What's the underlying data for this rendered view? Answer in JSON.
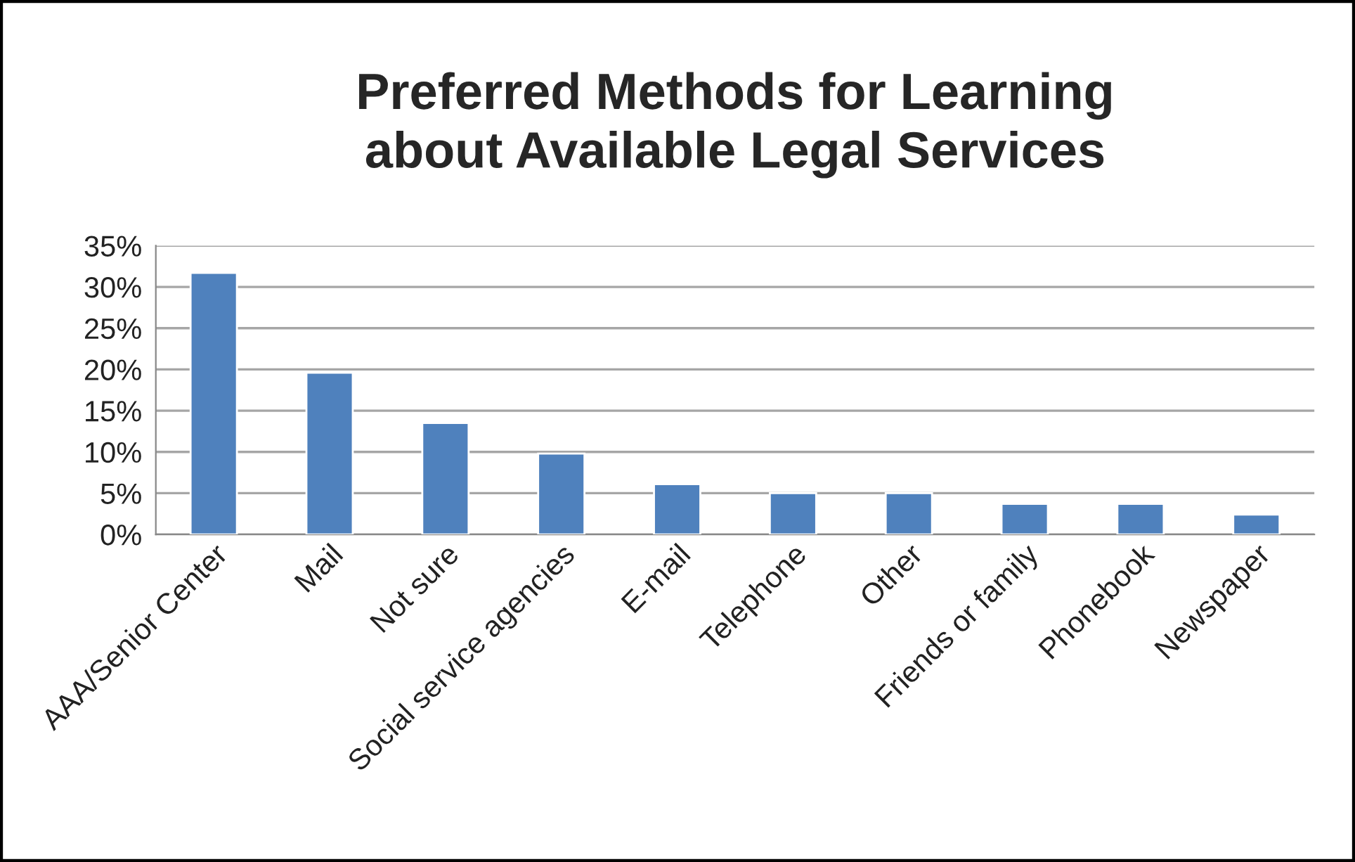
{
  "chart_data": {
    "type": "bar",
    "title": "Preferred Methods for Learning\nabout Available Legal Services",
    "categories": [
      "AAA/Senior Center",
      "Mail",
      "Not sure",
      "Social service agencies",
      "E-mail",
      "Telephone",
      "Other",
      "Friends or family",
      "Phonebook",
      "Newspaper"
    ],
    "values": [
      31.7,
      19.6,
      13.5,
      9.8,
      6.1,
      5.0,
      5.0,
      3.7,
      3.7,
      2.4
    ],
    "color": "#4f81bd",
    "ylim": [
      0,
      35
    ],
    "yticks": [
      {
        "value": 0,
        "label": "0%"
      },
      {
        "value": 5,
        "label": "5%"
      },
      {
        "value": 10,
        "label": "10%"
      },
      {
        "value": 15,
        "label": "15%"
      },
      {
        "value": 20,
        "label": "20%"
      },
      {
        "value": 25,
        "label": "25%"
      },
      {
        "value": 30,
        "label": "30%"
      },
      {
        "value": 35,
        "label": "35%"
      }
    ],
    "grid": "y"
  }
}
